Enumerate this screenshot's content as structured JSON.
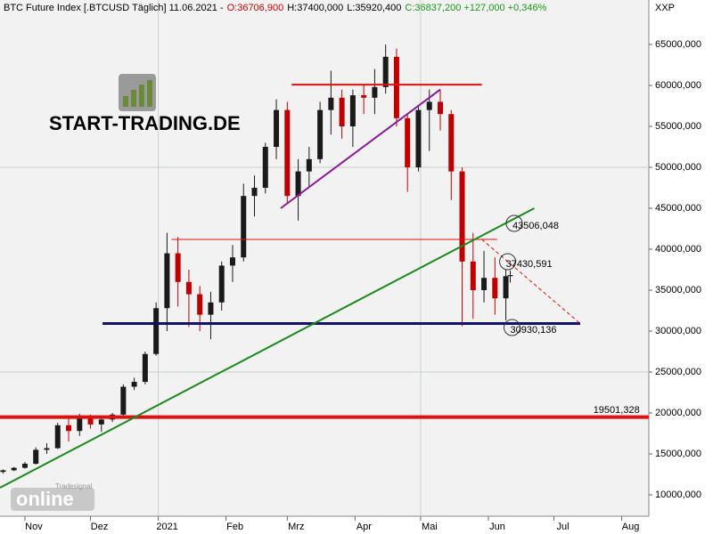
{
  "chart_data": {
    "type": "candlestick",
    "title_parts": [
      {
        "text": "BTC Future Index [.BTCUSD  Täglich] 11.06.2021 -",
        "color": "#000000"
      },
      {
        "text": "O:36706,900",
        "color": "#d00000"
      },
      {
        "text": "H:37400,000",
        "color": "#000000"
      },
      {
        "text": "L:35920,400",
        "color": "#000000"
      },
      {
        "text": "C:36837,200 +127,000 +0,346%",
        "color": "#1a9a1a"
      }
    ],
    "currency": "XXP",
    "logo": "START-TRADING.DE",
    "watermark": "online",
    "watermark_small": "Tradesignal",
    "x": [
      -10,
      -5,
      0,
      5,
      10,
      15,
      20,
      25,
      30,
      35,
      40,
      45,
      50,
      55,
      60,
      65,
      70,
      75,
      80,
      85,
      90,
      95,
      100,
      105,
      110,
      115,
      120,
      125,
      130,
      135,
      140,
      145,
      150,
      155,
      160,
      165,
      170,
      175,
      180,
      185,
      190,
      195,
      200,
      205,
      210,
      215,
      220,
      222
    ],
    "open": [
      12800,
      13000,
      13300,
      13800,
      15500,
      15700,
      18500,
      17800,
      19300,
      18600,
      19200,
      19800,
      23200,
      23800,
      27200,
      32800,
      39500,
      36000,
      34500,
      32000,
      33500,
      38000,
      39000,
      46500,
      47500,
      52500,
      57000,
      46500,
      49500,
      51000,
      57000,
      58500,
      55000,
      58800,
      58500,
      59800,
      63500,
      56000,
      50000,
      57000,
      58000,
      56500,
      49500,
      38500,
      35000,
      36500,
      34000,
      36706.9
    ],
    "high": [
      13100,
      13400,
      14000,
      15800,
      16300,
      18800,
      19500,
      19900,
      19800,
      19400,
      20000,
      23500,
      24300,
      27500,
      33500,
      42000,
      41500,
      37500,
      35500,
      34800,
      38500,
      40500,
      48000,
      49000,
      53000,
      58300,
      58000,
      51000,
      52500,
      58000,
      61800,
      59500,
      59500,
      60000,
      62000,
      65000,
      64500,
      56500,
      57500,
      59500,
      59500,
      57000,
      50000,
      42000,
      39800,
      39000,
      37500,
      37400
    ],
    "low": [
      12600,
      12900,
      13200,
      13700,
      15000,
      15600,
      16500,
      17200,
      18100,
      17700,
      18900,
      19500,
      22800,
      23500,
      27000,
      30000,
      33000,
      30500,
      30000,
      29000,
      32500,
      36000,
      38500,
      44000,
      46800,
      51000,
      45500,
      43500,
      47500,
      50500,
      54000,
      53500,
      52500,
      56500,
      56500,
      59000,
      55000,
      47000,
      49500,
      52000,
      54500,
      46000,
      30600,
      31500,
      33500,
      32000,
      31300,
      35920.4
    ],
    "close": [
      13000,
      13300,
      13800,
      15500,
      15700,
      18500,
      17800,
      19300,
      18600,
      19200,
      19800,
      23200,
      23800,
      27200,
      32800,
      39500,
      36000,
      34500,
      32000,
      33500,
      38000,
      39000,
      46500,
      47500,
      52500,
      57000,
      46500,
      49500,
      51000,
      57000,
      58500,
      55000,
      58800,
      58500,
      59800,
      63500,
      56000,
      50000,
      57000,
      58000,
      56500,
      49500,
      38500,
      35000,
      36500,
      34000,
      36706.9,
      36837.2
    ],
    "up_color": "#1a1a1a",
    "down_color": "#c00000",
    "xlim": [
      -11.4,
      285.4
    ],
    "xticks": [
      {
        "value": 0,
        "label": "Nov"
      },
      {
        "value": 30,
        "label": "Dez"
      },
      {
        "value": 61,
        "label": "2021"
      },
      {
        "value": 92,
        "label": "Feb"
      },
      {
        "value": 120,
        "label": "Mrz"
      },
      {
        "value": 151,
        "label": "Apr"
      },
      {
        "value": 181,
        "label": "Mai"
      },
      {
        "value": 212,
        "label": "Jun"
      },
      {
        "value": 242,
        "label": "Jul"
      },
      {
        "value": 273,
        "label": "Aug"
      }
    ],
    "ylim": [
      7391,
      70435
    ],
    "yticks": [
      {
        "value": 10000,
        "label": "10000,000"
      },
      {
        "value": 15000,
        "label": "15000,000"
      },
      {
        "value": 20000,
        "label": "20000,000"
      },
      {
        "value": 25000,
        "label": "25000,000"
      },
      {
        "value": 30000,
        "label": "30000,000"
      },
      {
        "value": 35000,
        "label": "35000,000"
      },
      {
        "value": 40000,
        "label": "40000,000"
      },
      {
        "value": 45000,
        "label": "45000,000"
      },
      {
        "value": 50000,
        "label": "50000,000"
      },
      {
        "value": 55000,
        "label": "55000,000"
      },
      {
        "value": 60000,
        "label": "60000,000"
      },
      {
        "value": 65000,
        "label": "65000,000"
      }
    ],
    "grid_y": [
      25000,
      50000
    ],
    "grid_x": [
      61,
      181
    ],
    "lines": [
      {
        "x": [
          -11.4,
          285.4
        ],
        "y": [
          19501.328,
          19501.328
        ],
        "color": "#e01010",
        "width": 4,
        "dash": false
      },
      {
        "x": [
          35.5,
          254
        ],
        "y": [
          30930.136,
          30930.136
        ],
        "color": "#101070",
        "width": 3,
        "dash": false
      },
      {
        "x": [
          67,
          216
        ],
        "y": [
          41200,
          41200
        ],
        "color": "#e01010",
        "width": 1,
        "dash": false
      },
      {
        "x": [
          122,
          209
        ],
        "y": [
          60100,
          60100
        ],
        "color": "#e01010",
        "width": 2,
        "dash": false
      },
      {
        "x": [
          117,
          190
        ],
        "y": [
          45000,
          59500
        ],
        "color": "#8a1a9a",
        "width": 2,
        "dash": false
      },
      {
        "x": [
          -11.4,
          233
        ],
        "y": [
          10870,
          45000
        ],
        "color": "#1a8a1a",
        "width": 2,
        "dash": false
      },
      {
        "x": [
          209,
          254
        ],
        "y": [
          41200,
          30930.136
        ],
        "color": "#e01010",
        "width": 1,
        "dash": true
      }
    ],
    "labels": [
      {
        "text": "43506,048",
        "color": "#2a8a2a",
        "at": [
          223,
          42826
        ],
        "marker": "circle"
      },
      {
        "text": "37430,591",
        "color": "#d00000",
        "at": [
          220,
          38152
        ],
        "marker": "circle"
      },
      {
        "text": "30930,136",
        "color": "#101070",
        "at": [
          222,
          30109
        ],
        "marker": "circle"
      },
      {
        "text": "19501,328",
        "color": "#d00000",
        "at": [
          260,
          20326
        ],
        "marker": "none"
      }
    ]
  }
}
